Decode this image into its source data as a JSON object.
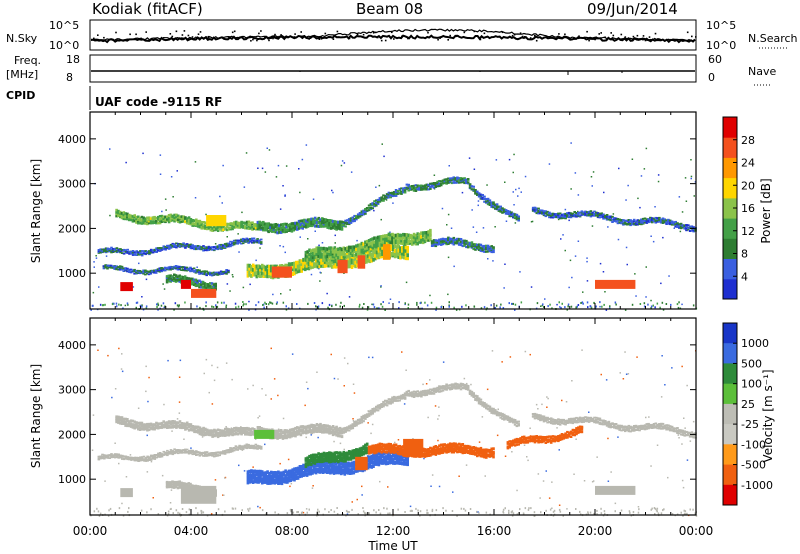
{
  "header": {
    "radar": "Kodiak (fitACF)",
    "beam": "Beam 08",
    "date": "09/Jun/2014"
  },
  "noise_panel": {
    "left_label": "N.Sky",
    "right_label": "N.Search",
    "left_ticks": [
      "10^5",
      "10^0"
    ],
    "right_ticks": [
      "10^5",
      "10^0"
    ]
  },
  "freq_panel": {
    "left_label_1": "Freq.",
    "left_label_2": "[MHz]",
    "right_label": "Nave",
    "left_ticks": [
      "18",
      "8"
    ],
    "right_ticks": [
      "60",
      "0"
    ]
  },
  "cpid_panel": {
    "label": "CPID",
    "text": "UAF code -9115 RF"
  },
  "colors": {
    "power": [
      "#1e2fd0",
      "#3a5fe0",
      "#2e7d32",
      "#43a047",
      "#8bc34a",
      "#ffd600",
      "#ff9800",
      "#f4511e",
      "#e00000"
    ],
    "velocity": [
      "#1836c8",
      "#3a6be0",
      "#2e8b3a",
      "#5cbf3a",
      "#bdbdb5",
      "#c9c9c2",
      "#ff9a1a",
      "#f06010",
      "#e00000"
    ],
    "ground_scatter": "#b8b8b0"
  },
  "chart_data": [
    {
      "type": "heatmap",
      "name": "power",
      "ylabel": "Slant Range [km]",
      "yticks": [
        "1000",
        "2000",
        "3000",
        "4000"
      ],
      "ylim": [
        200,
        4600
      ],
      "xlim": [
        0,
        24
      ],
      "colorbar_label": "Power [dB]",
      "colorbar_ticks": [
        "4",
        "8",
        "12",
        "16",
        "20",
        "24",
        "28"
      ],
      "colorbar_range": [
        0,
        32
      ],
      "features": [
        {
          "kind": "band",
          "t0": 1.0,
          "t1": 6.6,
          "r_start": 2300,
          "r_end": 2000,
          "width": 160,
          "value": 14
        },
        {
          "kind": "band",
          "t0": 6.6,
          "t1": 10.0,
          "r_start": 2050,
          "r_end": 2100,
          "width": 200,
          "value": 10
        },
        {
          "kind": "band",
          "t0": 10.0,
          "t1": 12.5,
          "r_start": 2150,
          "r_end": 2900,
          "width": 120,
          "value": 8
        },
        {
          "kind": "band",
          "t0": 12.5,
          "t1": 15.0,
          "r_start": 2950,
          "r_end": 3050,
          "width": 120,
          "value": 8
        },
        {
          "kind": "band",
          "t0": 15.0,
          "t1": 17.0,
          "r_start": 2950,
          "r_end": 2150,
          "width": 120,
          "value": 7
        },
        {
          "kind": "band",
          "t0": 17.5,
          "t1": 24.0,
          "r_start": 2400,
          "r_end": 2050,
          "width": 110,
          "value": 6
        },
        {
          "kind": "band",
          "t0": 0.3,
          "t1": 6.8,
          "r_start": 1450,
          "r_end": 1700,
          "width": 90,
          "value": 6
        },
        {
          "kind": "band",
          "t0": 0.5,
          "t1": 5.5,
          "r_start": 1100,
          "r_end": 1050,
          "width": 80,
          "value": 6
        },
        {
          "kind": "band",
          "t0": 6.2,
          "t1": 12.6,
          "r_start": 1000,
          "r_end": 1500,
          "width": 280,
          "value": 16
        },
        {
          "kind": "band",
          "t0": 8.5,
          "t1": 13.5,
          "r_start": 1350,
          "r_end": 1900,
          "width": 240,
          "value": 14
        },
        {
          "kind": "band",
          "t0": 13.5,
          "t1": 16.0,
          "r_start": 1700,
          "r_end": 1600,
          "width": 140,
          "value": 8
        },
        {
          "kind": "band",
          "t0": 3.0,
          "t1": 5.0,
          "r_start": 850,
          "r_end": 750,
          "width": 160,
          "value": 10
        },
        {
          "kind": "blob",
          "t0": 1.2,
          "t1": 1.7,
          "r0": 600,
          "r1": 800,
          "value": 29
        },
        {
          "kind": "blob",
          "t0": 3.6,
          "t1": 4.0,
          "r0": 650,
          "r1": 850,
          "value": 29
        },
        {
          "kind": "blob",
          "t0": 4.0,
          "t1": 5.0,
          "r0": 450,
          "r1": 650,
          "value": 26
        },
        {
          "kind": "blob",
          "t0": 20.0,
          "t1": 21.6,
          "r0": 650,
          "r1": 850,
          "value": 28
        },
        {
          "kind": "blob",
          "t0": 7.2,
          "t1": 8.0,
          "r0": 900,
          "r1": 1150,
          "value": 26
        },
        {
          "kind": "blob",
          "t0": 9.8,
          "t1": 10.2,
          "r0": 1000,
          "r1": 1300,
          "value": 27
        },
        {
          "kind": "blob",
          "t0": 10.6,
          "t1": 10.9,
          "r0": 1100,
          "r1": 1400,
          "value": 26
        },
        {
          "kind": "blob",
          "t0": 11.6,
          "t1": 11.9,
          "r0": 1300,
          "r1": 1650,
          "value": 24
        },
        {
          "kind": "blob",
          "t0": 4.6,
          "t1": 5.4,
          "r0": 2050,
          "r1": 2300,
          "value": 20
        }
      ]
    },
    {
      "type": "heatmap",
      "name": "velocity",
      "xlabel": "Time UT",
      "ylabel": "Slant Range [km]",
      "yticks": [
        "1000",
        "2000",
        "3000",
        "4000"
      ],
      "ylim": [
        200,
        4600
      ],
      "xticks": [
        "00:00",
        "04:00",
        "08:00",
        "12:00",
        "16:00",
        "20:00",
        "00:00"
      ],
      "xlim": [
        0,
        24
      ],
      "colorbar_label": "Velocity [m s⁻¹]",
      "colorbar_ticks": [
        "1000",
        "500",
        "100",
        "25",
        "-25",
        "-100",
        "-500",
        "-1000"
      ],
      "features": [
        {
          "kind": "band",
          "t0": 1.0,
          "t1": 6.6,
          "r_start": 2300,
          "r_end": 2000,
          "width": 160,
          "value": "gs"
        },
        {
          "kind": "band",
          "t0": 6.6,
          "t1": 10.0,
          "r_start": 2050,
          "r_end": 2100,
          "width": 200,
          "value": "gs"
        },
        {
          "kind": "band",
          "t0": 10.0,
          "t1": 12.5,
          "r_start": 2150,
          "r_end": 2900,
          "width": 120,
          "value": "gs"
        },
        {
          "kind": "band",
          "t0": 12.5,
          "t1": 15.0,
          "r_start": 2950,
          "r_end": 3050,
          "width": 120,
          "value": "gs"
        },
        {
          "kind": "band",
          "t0": 15.0,
          "t1": 17.0,
          "r_start": 2950,
          "r_end": 2150,
          "width": 120,
          "value": "gs"
        },
        {
          "kind": "band",
          "t0": 17.5,
          "t1": 24.0,
          "r_start": 2400,
          "r_end": 2050,
          "width": 110,
          "value": "gs"
        },
        {
          "kind": "band",
          "t0": 0.3,
          "t1": 6.8,
          "r_start": 1450,
          "r_end": 1700,
          "width": 90,
          "value": "gs"
        },
        {
          "kind": "band",
          "t0": 3.0,
          "t1": 5.0,
          "r_start": 850,
          "r_end": 750,
          "width": 160,
          "value": "gs"
        },
        {
          "kind": "band",
          "t0": 6.2,
          "t1": 12.6,
          "r_start": 1000,
          "r_end": 1500,
          "width": 280,
          "value": 250
        },
        {
          "kind": "band",
          "t0": 8.5,
          "t1": 11.0,
          "r_start": 1350,
          "r_end": 1700,
          "width": 220,
          "value": 150
        },
        {
          "kind": "band",
          "t0": 11.0,
          "t1": 16.0,
          "r_start": 1650,
          "r_end": 1650,
          "width": 200,
          "value": -300
        },
        {
          "kind": "band",
          "t0": 16.5,
          "t1": 19.5,
          "r_start": 1750,
          "r_end": 2100,
          "width": 140,
          "value": -250
        },
        {
          "kind": "blob",
          "t0": 1.2,
          "t1": 1.7,
          "r0": 600,
          "r1": 800,
          "value": "gs"
        },
        {
          "kind": "blob",
          "t0": 3.6,
          "t1": 5.0,
          "r0": 450,
          "r1": 850,
          "value": "gs"
        },
        {
          "kind": "blob",
          "t0": 20.0,
          "t1": 21.6,
          "r0": 650,
          "r1": 850,
          "value": "gs"
        },
        {
          "kind": "blob",
          "t0": 10.5,
          "t1": 11.0,
          "r0": 1200,
          "r1": 1500,
          "value": -200
        },
        {
          "kind": "blob",
          "t0": 12.4,
          "t1": 13.2,
          "r0": 1500,
          "r1": 1900,
          "value": -400
        },
        {
          "kind": "blob",
          "t0": 6.5,
          "t1": 7.3,
          "r0": 1900,
          "r1": 2100,
          "value": 80
        }
      ]
    }
  ]
}
